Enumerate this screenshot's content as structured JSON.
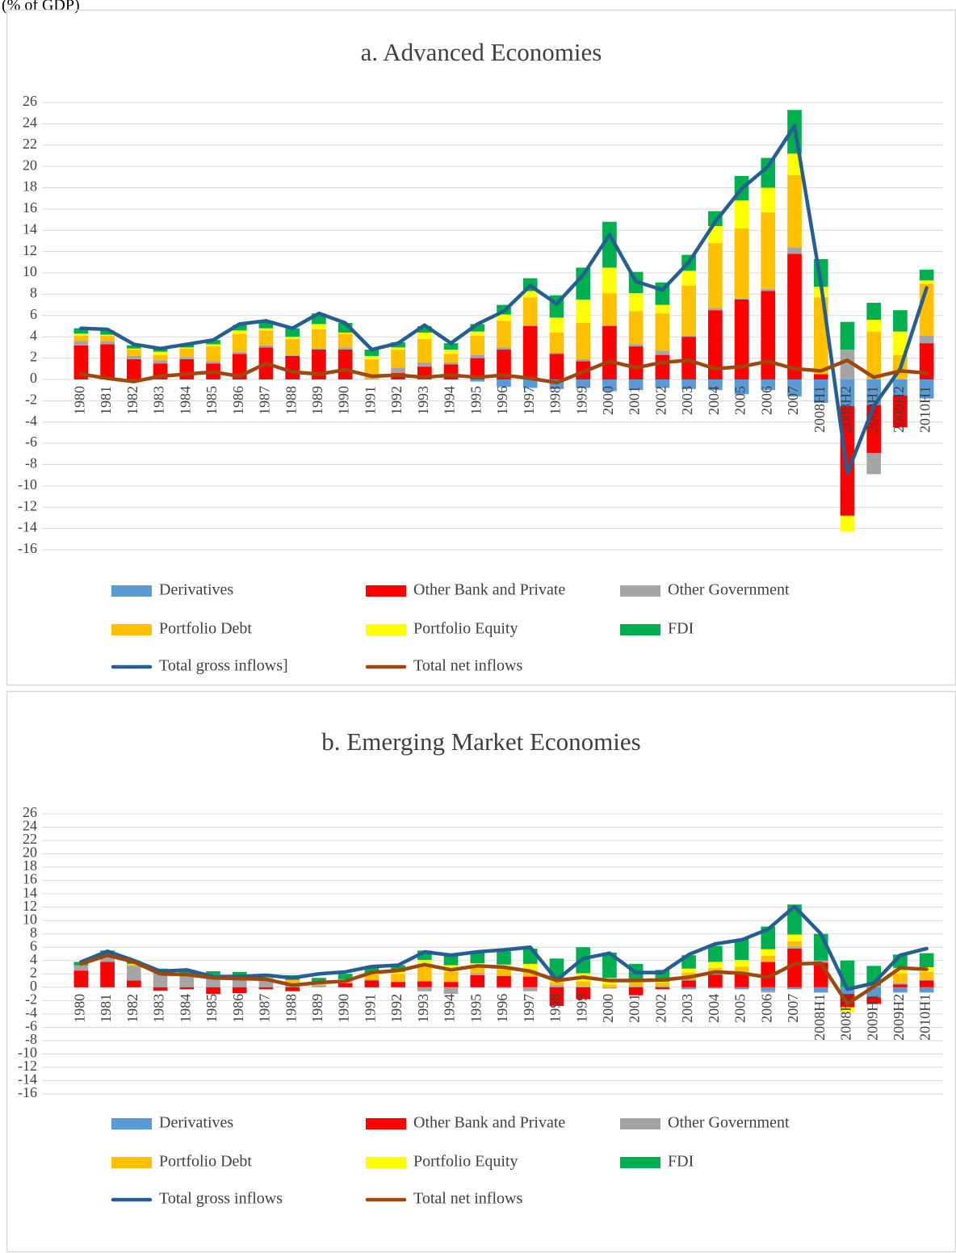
{
  "unit_label": "(% of GDP)",
  "chart_data": [
    {
      "type": "bar",
      "stacked": true,
      "title": "a. Advanced Economies",
      "grid": true,
      "legend": "bottom",
      "categories": [
        "1980",
        "1981",
        "1982",
        "1983",
        "1984",
        "1985",
        "1986",
        "1987",
        "1988",
        "1989",
        "1990",
        "1991",
        "1992",
        "1993",
        "1994",
        "1995",
        "1996",
        "1997",
        "1998",
        "1999",
        "2000",
        "2001",
        "2002",
        "2003",
        "2004",
        "2005",
        "2006",
        "2007",
        "2008H1",
        "2008H2",
        "2009H1",
        "2009H2",
        "2010H1"
      ],
      "ylim": [
        -16,
        26
      ],
      "yticks": [
        -16,
        -14,
        -12,
        -10,
        -8,
        -6,
        -4,
        -2,
        0,
        2,
        4,
        6,
        8,
        10,
        12,
        14,
        16,
        18,
        20,
        22,
        24,
        26
      ],
      "series": [
        {
          "name": "Derivatives",
          "type": "bar",
          "color": "#5b9bd5",
          "values": [
            0,
            0,
            0,
            0,
            0,
            0,
            0,
            0,
            0,
            0,
            0,
            0,
            0,
            0,
            0,
            -0.2,
            -0.7,
            -0.8,
            -0.9,
            -0.8,
            -1.1,
            -1.0,
            -0.8,
            -0.9,
            -1.0,
            -1.4,
            -1.0,
            -1.6,
            -2.2,
            -2.5,
            -2.4,
            -1.5,
            -1.8
          ]
        },
        {
          "name": "Other Bank and Private",
          "type": "bar",
          "color": "#ff0000",
          "values": [
            3.2,
            3.3,
            1.9,
            1.5,
            1.9,
            1.5,
            2.4,
            3.0,
            2.2,
            2.8,
            2.8,
            0,
            0.6,
            1.2,
            1.4,
            2.0,
            2.8,
            5.0,
            2.4,
            1.7,
            5.0,
            3.1,
            2.3,
            4.0,
            6.5,
            7.5,
            8.3,
            11.8,
            0.5,
            -10.3,
            -4.5,
            -3.0,
            3.4
          ]
        },
        {
          "name": "Other Government",
          "type": "bar",
          "color": "#a5a5a5",
          "values": [
            0.4,
            0.3,
            0.3,
            0.3,
            0.2,
            0.2,
            0.2,
            0.2,
            0.1,
            0.1,
            0.2,
            0.1,
            0.5,
            0.4,
            0.2,
            0.3,
            0.2,
            0.1,
            0.1,
            0.2,
            0.1,
            0.2,
            0.4,
            0.1,
            0.2,
            0.1,
            0.2,
            0.6,
            0,
            2.8,
            -2.0,
            0,
            0.7
          ]
        },
        {
          "name": "Portfolio Debt",
          "type": "bar",
          "color": "#ffc000",
          "values": [
            0.5,
            0.5,
            0.6,
            0.5,
            0.8,
            1.4,
            1.7,
            1.4,
            1.5,
            1.8,
            1.3,
            1.8,
            1.7,
            2.2,
            0.8,
            1.8,
            2.5,
            2.6,
            1.9,
            3.4,
            3.0,
            3.1,
            3.5,
            4.7,
            6.1,
            6.6,
            7.2,
            6.8,
            7.2,
            0,
            4.5,
            2.3,
            4.9
          ]
        },
        {
          "name": "Portfolio Equity",
          "type": "bar",
          "color": "#ffff00",
          "values": [
            0.2,
            0.1,
            0.1,
            0.3,
            0.1,
            0.2,
            0.3,
            0.2,
            0.2,
            0.5,
            0.1,
            0.3,
            0.2,
            0.6,
            0.4,
            0.4,
            0.6,
            0.6,
            1.4,
            2.2,
            2.4,
            1.7,
            0.8,
            1.4,
            1.6,
            2.6,
            2.3,
            2.0,
            1.0,
            -1.5,
            1.1,
            2.2,
            0.3
          ]
        },
        {
          "name": "FDI",
          "type": "bar",
          "color": "#00b050",
          "values": [
            0.5,
            0.4,
            0.3,
            0.3,
            0.3,
            0.4,
            0.5,
            0.7,
            0.8,
            1.0,
            0.9,
            0.6,
            0.5,
            0.6,
            0.6,
            0.7,
            0.9,
            1.2,
            2.1,
            3.0,
            4.3,
            2.0,
            2.1,
            1.5,
            1.4,
            2.3,
            2.8,
            4.1,
            2.6,
            2.6,
            1.6,
            2.0,
            1.0
          ]
        },
        {
          "name": "Total gross inflows]",
          "type": "line",
          "color": "#255e91",
          "values": [
            4.8,
            4.7,
            3.3,
            2.9,
            3.3,
            3.7,
            5.2,
            5.5,
            4.8,
            6.2,
            5.3,
            2.8,
            3.4,
            5.1,
            3.4,
            5.2,
            6.4,
            8.8,
            7.1,
            9.8,
            13.6,
            9.2,
            8.4,
            11.0,
            14.8,
            17.9,
            20.0,
            23.8,
            9.0,
            -8.8,
            -2.5,
            1.0,
            8.6
          ]
        },
        {
          "name": "Total net inflows",
          "type": "line",
          "color": "#9e480e",
          "values": [
            0.5,
            0.1,
            -0.2,
            0.3,
            0.5,
            0.7,
            0.3,
            1.5,
            0.7,
            0.5,
            0.9,
            0.3,
            0.4,
            0.2,
            0.4,
            0.2,
            0.4,
            0.1,
            -0.3,
            0.7,
            1.7,
            1.1,
            1.6,
            1.8,
            1.0,
            1.2,
            1.7,
            1.0,
            0.8,
            1.8,
            0.2,
            0.8,
            0.6
          ]
        }
      ]
    },
    {
      "type": "bar",
      "stacked": true,
      "title": "b. Emerging Market Economies",
      "grid": true,
      "legend": "bottom",
      "categories": [
        "1980",
        "1981",
        "1982",
        "1983",
        "1984",
        "1985",
        "1986",
        "1987",
        "1988",
        "1989",
        "1990",
        "1991",
        "1992",
        "1993",
        "1994",
        "1995",
        "1996",
        "1997",
        "1998",
        "1999",
        "2000",
        "2001",
        "2002",
        "2003",
        "2004",
        "2005",
        "2006",
        "2007",
        "2008H1",
        "2008H2",
        "2009H1",
        "2009H2",
        "2010H1"
      ],
      "ylim": [
        -16,
        26
      ],
      "yticks": [
        -16,
        -14,
        -12,
        -10,
        -8,
        -6,
        -4,
        -2,
        0,
        2,
        4,
        6,
        8,
        10,
        12,
        14,
        16,
        18,
        20,
        22,
        24,
        26
      ],
      "series": [
        {
          "name": "Derivatives",
          "type": "bar",
          "color": "#5b9bd5",
          "values": [
            0,
            0,
            0,
            0,
            0,
            0,
            0,
            0,
            0,
            0,
            0,
            0,
            0,
            0,
            0,
            0,
            0,
            0,
            0,
            0,
            0,
            0,
            0,
            -0.3,
            -0.2,
            -0.3,
            -0.5,
            -0.3,
            -0.8,
            -1.0,
            -1.5,
            -0.8,
            -0.8
          ]
        },
        {
          "name": "Other Bank and Private",
          "type": "bar",
          "color": "#ff0000",
          "values": [
            2.5,
            3.8,
            1.0,
            -0.5,
            -0.3,
            -1.0,
            -0.9,
            -0.3,
            -0.6,
            0,
            0.6,
            1.0,
            0.8,
            0.9,
            0.8,
            1.8,
            1.7,
            1.6,
            -2.8,
            -1.8,
            0,
            -1.2,
            -0.3,
            1.0,
            1.9,
            2.0,
            3.8,
            5.8,
            3.7,
            -2.0,
            -1.0,
            0.4,
            1.0
          ]
        },
        {
          "name": "Other Government",
          "type": "bar",
          "color": "#a5a5a5",
          "values": [
            0.8,
            1.0,
            2.2,
            2.2,
            2.0,
            1.7,
            1.6,
            1.3,
            0.6,
            0.3,
            0.2,
            0.2,
            0,
            -0.6,
            -1.0,
            0.3,
            -0.1,
            -0.6,
            0.3,
            0.1,
            -0.2,
            0.2,
            0.2,
            0.2,
            0.2,
            0.2,
            -0.3,
            0.3,
            0.3,
            0,
            0.2,
            0.2,
            0.1
          ]
        },
        {
          "name": "Portfolio Debt",
          "type": "bar",
          "color": "#ffc000",
          "values": [
            0,
            0.2,
            0.2,
            0.2,
            0,
            0.2,
            0.2,
            0.2,
            0.5,
            0.2,
            0.3,
            0.7,
            1.2,
            2.3,
            1.5,
            0.8,
            1.0,
            1.0,
            0.5,
            0.8,
            0.4,
            0.5,
            0.5,
            1.0,
            0.8,
            0.9,
            0.9,
            0.8,
            0,
            0,
            0,
            1.5,
            1.2
          ]
        },
        {
          "name": "Portfolio Equity",
          "type": "bar",
          "color": "#ffff00",
          "values": [
            0,
            0,
            0.1,
            0,
            0,
            0,
            0,
            0,
            0,
            0.1,
            0.1,
            0.2,
            0.3,
            0.9,
            1.0,
            0.7,
            0.7,
            0.9,
            0.3,
            1.2,
            1.0,
            0.3,
            0.1,
            0.6,
            0.9,
            1.0,
            1.0,
            1.0,
            0,
            -0.8,
            0,
            0.8,
            0.7
          ]
        },
        {
          "name": "FDI",
          "type": "bar",
          "color": "#00b050",
          "values": [
            0.5,
            0.5,
            0.4,
            0.4,
            0.5,
            0.5,
            0.5,
            0.4,
            0.7,
            0.8,
            0.8,
            0.9,
            1.0,
            1.4,
            1.6,
            1.8,
            2.0,
            2.3,
            3.2,
            3.9,
            3.8,
            2.5,
            1.8,
            2.0,
            2.4,
            3.1,
            3.4,
            4.5,
            4.0,
            4.0,
            3.0,
            2.0,
            2.1
          ]
        },
        {
          "name": "Total gross inflows",
          "type": "line",
          "color": "#255e91",
          "values": [
            3.8,
            5.4,
            4.0,
            2.4,
            2.6,
            1.6,
            1.6,
            1.8,
            1.4,
            2.0,
            2.3,
            3.1,
            3.3,
            5.3,
            4.8,
            5.3,
            5.6,
            6.0,
            1.1,
            4.3,
            5.1,
            2.2,
            2.2,
            4.9,
            6.5,
            7.1,
            8.7,
            12.1,
            8.0,
            -0.3,
            0.6,
            4.8,
            5.8
          ]
        },
        {
          "name": "Total net inflows",
          "type": "line",
          "color": "#9e480e",
          "values": [
            3.5,
            4.8,
            3.8,
            2.0,
            1.9,
            1.4,
            1.3,
            1.2,
            0.3,
            0.7,
            0.9,
            2.2,
            2.5,
            3.4,
            2.6,
            3.2,
            3.0,
            2.4,
            1.0,
            1.5,
            1.0,
            1.0,
            1.1,
            1.5,
            2.3,
            2.1,
            1.5,
            3.5,
            3.6,
            -2.5,
            0.1,
            2.9,
            2.7
          ]
        }
      ]
    }
  ]
}
